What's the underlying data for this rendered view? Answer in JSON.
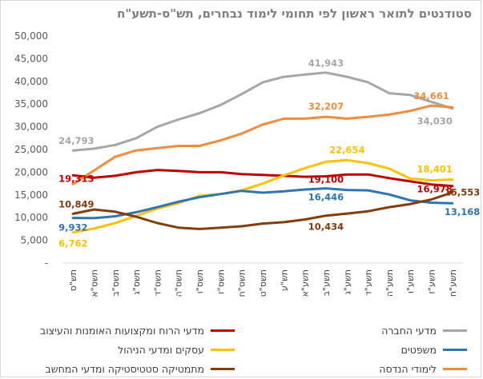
{
  "chart_data": {
    "type": "line",
    "title": "סטודנטים לתואר ראשון לפי תחומי לימוד נבחרים, תש\"ס-תשע\"ח",
    "categories": [
      "תש\"ס",
      "תשס\"א",
      "תשס\"ב",
      "תשס\"ג",
      "תשס\"ד",
      "תשס\"ה",
      "תשס\"ו",
      "תשס\"ז",
      "תשס\"ח",
      "תשס\"ט",
      "תש\"ע",
      "תשע\"א",
      "תשע\"ב",
      "תשע\"ג",
      "תשע\"ד",
      "תשע\"ה",
      "תשע\"ו",
      "תשע\"ז",
      "תשע\"ח"
    ],
    "ylim": [
      0,
      50000
    ],
    "yticks": [
      "-",
      "5,000",
      "10,000",
      "15,000",
      "20,000",
      "25,000",
      "30,000",
      "35,000",
      "40,000",
      "45,000",
      "50,000"
    ],
    "grid": false,
    "legend_position": "bottom",
    "series": [
      {
        "name": "מדעי הרוח ומקצועות האומנות והעיצוב",
        "color": "#c00000",
        "values": [
          19313,
          18800,
          19200,
          20000,
          20500,
          20300,
          20000,
          20000,
          19600,
          19400,
          19200,
          19000,
          19100,
          19500,
          19500,
          18700,
          18000,
          17300,
          16978
        ],
        "labels": [
          {
            "i": 0,
            "text": "19,313"
          },
          {
            "i": 12,
            "text": "19,100"
          },
          {
            "i": 18,
            "text": "16,978"
          }
        ]
      },
      {
        "name": "מדעי החברה",
        "color": "#a6a6a6",
        "values": [
          24793,
          25200,
          26000,
          27500,
          30000,
          31600,
          33000,
          34800,
          37200,
          39800,
          41000,
          41500,
          41943,
          41000,
          39800,
          37400,
          37000,
          35500,
          34030
        ],
        "labels": [
          {
            "i": 0,
            "text": "24,793"
          },
          {
            "i": 12,
            "text": "41,943"
          },
          {
            "i": 18,
            "text": "34,030"
          }
        ]
      },
      {
        "name": "עסקים ומדעי הניהול",
        "color": "#ffc000",
        "values": [
          6762,
          7600,
          8800,
          10400,
          12000,
          13200,
          14800,
          15200,
          16000,
          17500,
          19300,
          20900,
          22300,
          22654,
          22000,
          20800,
          18600,
          18200,
          18401
        ],
        "labels": [
          {
            "i": 0,
            "text": "6,762"
          },
          {
            "i": 13,
            "text": "22,654"
          },
          {
            "i": 18,
            "text": "18,401"
          }
        ]
      },
      {
        "name": "משפטים",
        "color": "#2e75b6",
        "values": [
          9932,
          9900,
          10300,
          11200,
          12300,
          13500,
          14500,
          15200,
          15900,
          15500,
          15800,
          16200,
          16446,
          16100,
          16000,
          15100,
          13800,
          13300,
          13168
        ],
        "labels": [
          {
            "i": 0,
            "text": "9,932"
          },
          {
            "i": 12,
            "text": "16,446"
          },
          {
            "i": 18,
            "text": "13,168"
          }
        ]
      },
      {
        "name": "מתמטיקה סטטיסטיקה ומדעי המחשב",
        "color": "#843c0c",
        "values": [
          10849,
          11800,
          11300,
          10200,
          8800,
          7800,
          7500,
          7800,
          8100,
          8700,
          9000,
          9600,
          10434,
          10900,
          11400,
          12300,
          13000,
          14000,
          15553
        ],
        "labels": [
          {
            "i": 0,
            "text": "10,849"
          },
          {
            "i": 12,
            "text": "10,434"
          },
          {
            "i": 18,
            "text": "15,553"
          }
        ]
      },
      {
        "name": "לימודי הנדסה",
        "color": "#f08c3c",
        "values": [
          17400,
          20400,
          23400,
          24800,
          25300,
          25800,
          25800,
          27000,
          28500,
          30500,
          31800,
          31800,
          32207,
          31800,
          32200,
          32700,
          33500,
          34661,
          34300
        ],
        "labels": [
          {
            "i": 12,
            "text": "32,207"
          },
          {
            "i": 17,
            "text": "34,661"
          }
        ]
      }
    ]
  }
}
